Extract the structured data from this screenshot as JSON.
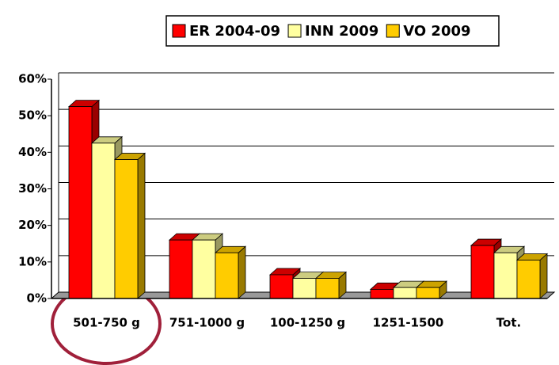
{
  "chart_data": {
    "type": "bar3d",
    "categories": [
      "501-750 g",
      "751-1000 g",
      "100-1250 g",
      "1251-1500",
      "Tot."
    ],
    "series": [
      {
        "name": "ER 2004-09",
        "color": "#ff0000",
        "values": [
          52.5,
          16,
          6.5,
          2.5,
          14.5
        ]
      },
      {
        "name": "INN 2009",
        "color": "#ffffa0",
        "values": [
          42.5,
          16,
          5.5,
          3,
          12.5
        ]
      },
      {
        "name": "VO 2009",
        "color": "#ffcc00",
        "values": [
          38,
          12.5,
          5.5,
          3,
          10.5
        ]
      }
    ],
    "ylim": [
      0,
      60
    ],
    "yticks": [
      {
        "value": 0,
        "label": "0%"
      },
      {
        "value": 10,
        "label": "10%"
      },
      {
        "value": 20,
        "label": "20%"
      },
      {
        "value": 30,
        "label": "30%"
      },
      {
        "value": 40,
        "label": "40%"
      },
      {
        "value": 50,
        "label": "50%"
      },
      {
        "value": 60,
        "label": "60%"
      }
    ],
    "grid": true
  }
}
